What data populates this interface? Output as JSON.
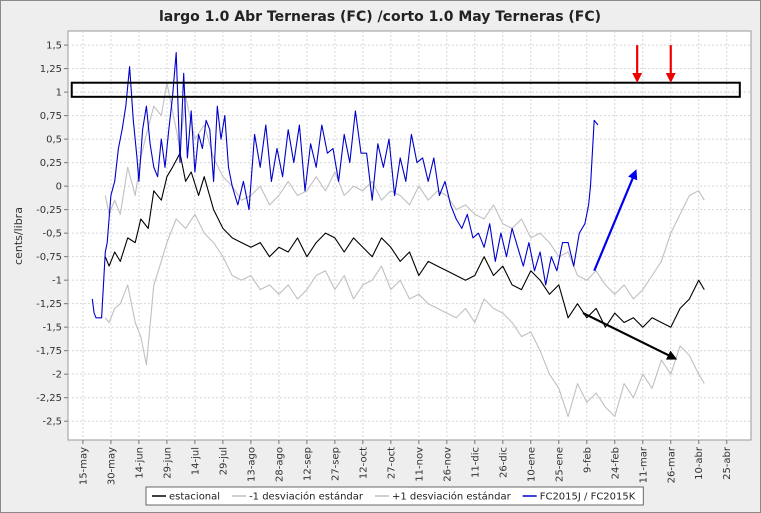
{
  "chart_data": {
    "type": "line",
    "title": "largo 1.0 Abr Terneras (FC)  /corto 1.0 May Terneras (FC)",
    "xlabel": "",
    "ylabel": "cents/libra",
    "ylim": [
      -2.7,
      1.65
    ],
    "xlim": [
      -8,
      358
    ],
    "yticks": [
      {
        "v": 1.5,
        "label": "1,5"
      },
      {
        "v": 1.25,
        "label": "1,25"
      },
      {
        "v": 1,
        "label": "1"
      },
      {
        "v": 0.75,
        "label": "0,75"
      },
      {
        "v": 0.5,
        "label": "0,5"
      },
      {
        "v": 0.25,
        "label": "0,25"
      },
      {
        "v": 0,
        "label": "0"
      },
      {
        "v": -0.25,
        "label": "-0,25"
      },
      {
        "v": -0.5,
        "label": "-0,5"
      },
      {
        "v": -0.75,
        "label": "-0,75"
      },
      {
        "v": -1,
        "label": "-1"
      },
      {
        "v": -1.25,
        "label": "-1,25"
      },
      {
        "v": -1.5,
        "label": "-1,5"
      },
      {
        "v": -1.75,
        "label": "-1,75"
      },
      {
        "v": -2,
        "label": "-2"
      },
      {
        "v": -2.25,
        "label": "-2,25"
      },
      {
        "v": -2.5,
        "label": "-2,5"
      }
    ],
    "xticks": [
      {
        "d": 0,
        "label": "15-may"
      },
      {
        "d": 15,
        "label": "30-may"
      },
      {
        "d": 30,
        "label": "14-jun"
      },
      {
        "d": 45,
        "label": "29-jun"
      },
      {
        "d": 60,
        "label": "14-jul"
      },
      {
        "d": 75,
        "label": "29-jul"
      },
      {
        "d": 90,
        "label": "13-ago"
      },
      {
        "d": 105,
        "label": "28-ago"
      },
      {
        "d": 120,
        "label": "12-sep"
      },
      {
        "d": 135,
        "label": "27-sep"
      },
      {
        "d": 150,
        "label": "12-oct"
      },
      {
        "d": 165,
        "label": "27-oct"
      },
      {
        "d": 180,
        "label": "11-nov"
      },
      {
        "d": 195,
        "label": "26-nov"
      },
      {
        "d": 210,
        "label": "11-dic"
      },
      {
        "d": 225,
        "label": "26-dic"
      },
      {
        "d": 240,
        "label": "10-ene"
      },
      {
        "d": 255,
        "label": "25-ene"
      },
      {
        "d": 270,
        "label": "9-feb"
      },
      {
        "d": 285,
        "label": "24-feb"
      },
      {
        "d": 300,
        "label": "11-mar"
      },
      {
        "d": 315,
        "label": "26-mar"
      },
      {
        "d": 330,
        "label": "10-abr"
      },
      {
        "d": 345,
        "label": "25-abr"
      }
    ],
    "series": [
      {
        "name": "estacional",
        "color": "#000000",
        "x": [
          12,
          14,
          17,
          20,
          24,
          28,
          31,
          35,
          38,
          42,
          45,
          48,
          52,
          55,
          58,
          62,
          65,
          70,
          75,
          80,
          85,
          90,
          95,
          100,
          105,
          110,
          115,
          120,
          125,
          130,
          135,
          140,
          145,
          150,
          155,
          160,
          165,
          170,
          175,
          180,
          185,
          190,
          195,
          200,
          205,
          210,
          215,
          220,
          225,
          230,
          235,
          240,
          245,
          250,
          255,
          260,
          265,
          270,
          275,
          280,
          285,
          290,
          295,
          300,
          305,
          310,
          315,
          320,
          325,
          330,
          333
        ],
        "y": [
          -0.75,
          -0.85,
          -0.7,
          -0.8,
          -0.55,
          -0.6,
          -0.35,
          -0.45,
          -0.05,
          -0.15,
          0.1,
          0.2,
          0.35,
          0.05,
          0.15,
          -0.1,
          0.1,
          -0.25,
          -0.45,
          -0.55,
          -0.6,
          -0.65,
          -0.6,
          -0.75,
          -0.65,
          -0.7,
          -0.55,
          -0.75,
          -0.6,
          -0.5,
          -0.55,
          -0.7,
          -0.55,
          -0.65,
          -0.75,
          -0.55,
          -0.65,
          -0.8,
          -0.7,
          -0.95,
          -0.8,
          -0.85,
          -0.9,
          -0.95,
          -1.0,
          -0.95,
          -0.75,
          -0.95,
          -0.85,
          -1.05,
          -1.1,
          -0.9,
          -1.0,
          -1.15,
          -1.05,
          -1.4,
          -1.25,
          -1.4,
          -1.3,
          -1.5,
          -1.35,
          -1.45,
          -1.4,
          -1.5,
          -1.4,
          -1.45,
          -1.5,
          -1.3,
          -1.2,
          -1.0,
          -1.1
        ]
      },
      {
        "name": "-1 desviación estándar",
        "color": "#c0c0c0",
        "x": [
          12,
          14,
          17,
          20,
          24,
          28,
          31,
          34,
          38,
          42,
          45,
          50,
          55,
          60,
          65,
          70,
          75,
          80,
          85,
          90,
          95,
          100,
          105,
          110,
          115,
          120,
          125,
          130,
          135,
          140,
          145,
          150,
          155,
          160,
          165,
          170,
          175,
          180,
          185,
          190,
          195,
          200,
          205,
          210,
          215,
          220,
          225,
          230,
          235,
          240,
          245,
          250,
          255,
          260,
          265,
          270,
          275,
          280,
          285,
          290,
          295,
          300,
          305,
          310,
          315,
          320,
          325,
          330,
          333
        ],
        "y": [
          -1.4,
          -1.45,
          -1.3,
          -1.25,
          -1.05,
          -1.45,
          -1.6,
          -1.9,
          -1.05,
          -0.8,
          -0.6,
          -0.35,
          -0.45,
          -0.3,
          -0.5,
          -0.6,
          -0.75,
          -0.95,
          -1.0,
          -0.95,
          -1.1,
          -1.05,
          -1.15,
          -1.05,
          -1.2,
          -1.1,
          -0.95,
          -0.9,
          -1.1,
          -0.95,
          -1.2,
          -1.05,
          -1.0,
          -0.85,
          -1.1,
          -1.0,
          -1.2,
          -1.15,
          -1.25,
          -1.3,
          -1.35,
          -1.4,
          -1.3,
          -1.45,
          -1.2,
          -1.3,
          -1.35,
          -1.45,
          -1.6,
          -1.55,
          -1.75,
          -2.0,
          -2.15,
          -2.45,
          -2.1,
          -2.3,
          -2.2,
          -2.35,
          -2.45,
          -2.1,
          -2.25,
          -2.0,
          -2.15,
          -1.85,
          -2.0,
          -1.7,
          -1.8,
          -2.0,
          -2.1
        ]
      },
      {
        "name": "+1 desviación estándar",
        "color": "#c0c0c0",
        "x": [
          12,
          14,
          17,
          20,
          24,
          28,
          31,
          34,
          38,
          42,
          45,
          48,
          52,
          55,
          60,
          65,
          70,
          75,
          80,
          85,
          90,
          95,
          100,
          105,
          110,
          115,
          120,
          125,
          130,
          135,
          140,
          145,
          150,
          155,
          160,
          165,
          170,
          175,
          180,
          185,
          190,
          195,
          200,
          205,
          210,
          215,
          220,
          225,
          230,
          235,
          240,
          245,
          250,
          255,
          260,
          265,
          270,
          275,
          280,
          285,
          290,
          295,
          300,
          305,
          310,
          315,
          320,
          325,
          330,
          333
        ],
        "y": [
          -0.1,
          -0.3,
          -0.15,
          -0.3,
          0.2,
          -0.1,
          0.3,
          0.55,
          0.85,
          0.75,
          1.1,
          0.8,
          0.4,
          0.95,
          0.5,
          0.65,
          0.3,
          0.1,
          0.0,
          -0.15,
          -0.1,
          0.0,
          -0.2,
          -0.1,
          0.05,
          -0.1,
          -0.05,
          0.1,
          -0.05,
          0.15,
          -0.1,
          0.0,
          -0.05,
          0.05,
          -0.15,
          -0.05,
          -0.1,
          -0.2,
          0.0,
          -0.15,
          -0.05,
          -0.1,
          -0.25,
          -0.2,
          -0.3,
          -0.35,
          -0.2,
          -0.4,
          -0.45,
          -0.35,
          -0.55,
          -0.5,
          -0.6,
          -0.75,
          -0.7,
          -0.95,
          -1.0,
          -0.9,
          -1.05,
          -1.15,
          -1.05,
          -1.2,
          -1.1,
          -0.95,
          -0.8,
          -0.5,
          -0.3,
          -0.1,
          -0.05,
          -0.15
        ]
      },
      {
        "name": "FC2015J / FC2015K",
        "color": "#0000cc",
        "x": [
          5,
          6,
          7,
          10,
          12,
          13,
          15,
          17,
          19,
          21,
          23,
          25,
          27,
          29,
          30,
          32,
          34,
          36,
          38,
          40,
          42,
          44,
          46,
          48,
          50,
          52,
          54,
          56,
          58,
          60,
          62,
          64,
          66,
          68,
          70,
          72,
          74,
          76,
          78,
          80,
          83,
          86,
          89,
          92,
          95,
          98,
          101,
          104,
          107,
          110,
          113,
          116,
          119,
          122,
          125,
          128,
          131,
          134,
          137,
          140,
          143,
          146,
          149,
          152,
          155,
          158,
          161,
          164,
          167,
          170,
          173,
          176,
          179,
          182,
          185,
          188,
          191,
          194,
          197,
          200,
          203,
          206,
          209,
          212,
          215,
          218,
          221,
          224,
          227,
          230,
          233,
          236,
          239,
          242,
          245,
          248,
          251,
          254,
          257,
          260,
          263,
          266,
          269,
          271,
          272,
          274,
          276
        ],
        "y": [
          -1.2,
          -1.35,
          -1.4,
          -1.4,
          -0.7,
          -0.6,
          -0.1,
          0.05,
          0.4,
          0.6,
          0.85,
          1.27,
          0.7,
          0.3,
          0.05,
          0.6,
          0.85,
          0.45,
          0.2,
          0.1,
          0.5,
          0.2,
          0.6,
          0.95,
          1.42,
          0.25,
          1.2,
          0.3,
          0.8,
          0.15,
          0.55,
          0.4,
          0.7,
          0.6,
          0.05,
          0.85,
          0.5,
          0.75,
          0.2,
          0.0,
          -0.2,
          0.05,
          -0.25,
          0.55,
          0.2,
          0.65,
          0.05,
          0.4,
          0.1,
          0.6,
          0.25,
          0.65,
          -0.05,
          0.45,
          0.2,
          0.65,
          0.35,
          0.4,
          0.05,
          0.55,
          0.25,
          0.8,
          0.35,
          0.35,
          -0.15,
          0.45,
          0.2,
          0.5,
          -0.1,
          0.3,
          0.05,
          0.55,
          0.25,
          0.3,
          0.05,
          0.3,
          -0.1,
          0.05,
          -0.2,
          -0.35,
          -0.45,
          -0.3,
          -0.55,
          -0.5,
          -0.65,
          -0.4,
          -0.8,
          -0.5,
          -0.75,
          -0.45,
          -0.65,
          -0.85,
          -0.6,
          -0.9,
          -0.7,
          -1.05,
          -0.75,
          -0.9,
          -0.6,
          -0.6,
          -0.85,
          -0.5,
          -0.4,
          -0.2,
          0.0,
          0.7,
          0.65
        ]
      }
    ],
    "annotations": [
      {
        "type": "band",
        "y": [
          0.95,
          1.1
        ],
        "x": [
          -6,
          352
        ],
        "stroke": "#000000"
      },
      {
        "type": "arrow",
        "from": [
          274,
          -0.9
        ],
        "to": [
          296,
          0.15
        ],
        "color": "#0000ee"
      },
      {
        "type": "arrow",
        "from": [
          268,
          -1.35
        ],
        "to": [
          317,
          -1.83
        ],
        "color": "#000000"
      },
      {
        "type": "arrow",
        "from": [
          297,
          1.5
        ],
        "to": [
          297,
          1.13
        ],
        "color": "#ee0000"
      },
      {
        "type": "arrow",
        "from": [
          315,
          1.5
        ],
        "to": [
          315,
          1.13
        ],
        "color": "#ee0000"
      }
    ],
    "grid": true,
    "legend": "bottom"
  }
}
